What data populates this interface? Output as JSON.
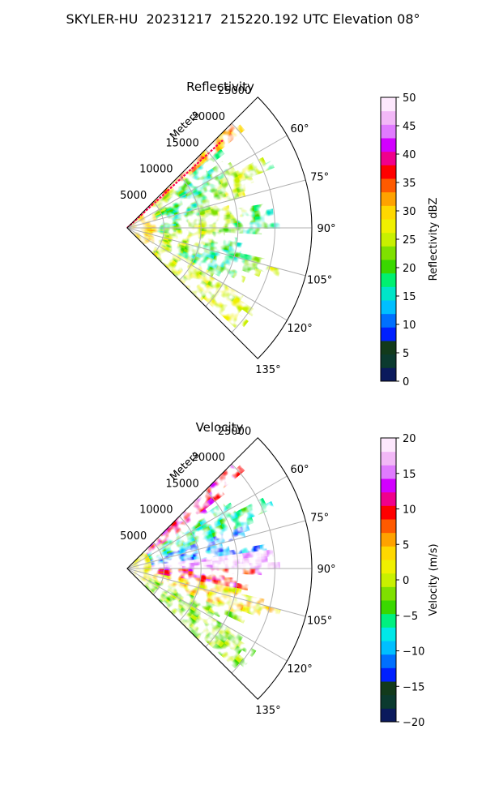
{
  "figure": {
    "suptitle": "SKYLER-HU  20231217  215220.192 UTC Elevation 08°"
  },
  "chart_data": [
    {
      "type": "heatmap",
      "subtype": "polar-sector",
      "title": "Reflectivity",
      "range_label": "Meters",
      "r_ticks": [
        5000,
        10000,
        15000,
        20000,
        25000
      ],
      "r_max": 25000,
      "theta_ticks": [
        "60°",
        "75°",
        "90°",
        "105°",
        "120°",
        "135°"
      ],
      "theta_range_deg": [
        45,
        135
      ],
      "colorbar": {
        "label": "Reflectivity dBZ",
        "range": [
          0,
          50
        ],
        "ticks": [
          "0",
          "5",
          "10",
          "15",
          "20",
          "25",
          "30",
          "35",
          "40",
          "45",
          "50"
        ],
        "colors": [
          "#0b1a5c",
          "#0b3a2f",
          "#123a1b",
          "#0020ff",
          "#0070ff",
          "#00bfff",
          "#00e5c8",
          "#00f070",
          "#3ad800",
          "#7fe000",
          "#c8f000",
          "#f0f000",
          "#ffd800",
          "#ffa200",
          "#ff5a00",
          "#ff0000",
          "#f0008c",
          "#d200ff",
          "#e07bff",
          "#f2b8f7",
          "#fde8fd"
        ]
      },
      "field_description_levels": {
        "near_band": 32,
        "band_high": 38,
        "mid": 22,
        "far": 20
      },
      "grid": true
    },
    {
      "type": "heatmap",
      "subtype": "polar-sector",
      "title": "Velocity",
      "range_label": "Meters",
      "r_ticks": [
        5000,
        10000,
        15000,
        20000,
        25000
      ],
      "r_max": 25000,
      "theta_ticks": [
        "60°",
        "75°",
        "90°",
        "105°",
        "120°",
        "135°"
      ],
      "theta_range_deg": [
        45,
        135
      ],
      "colorbar": {
        "label": "Velocity (m/s)",
        "range": [
          -20,
          20
        ],
        "ticks": [
          "−20",
          "−15",
          "−10",
          "−5",
          "0",
          "5",
          "10",
          "15",
          "20"
        ],
        "colors": [
          "#0b1a5c",
          "#0b3a2f",
          "#123a1b",
          "#0020ff",
          "#0070ff",
          "#00bfff",
          "#00e8e8",
          "#00f080",
          "#3ad800",
          "#7fe000",
          "#c8f000",
          "#f0f000",
          "#ffd800",
          "#ffa200",
          "#ff5a00",
          "#ff0000",
          "#f0008c",
          "#d200ff",
          "#e07bff",
          "#f2b8f7",
          "#fde8fd"
        ]
      },
      "grid": true
    }
  ]
}
